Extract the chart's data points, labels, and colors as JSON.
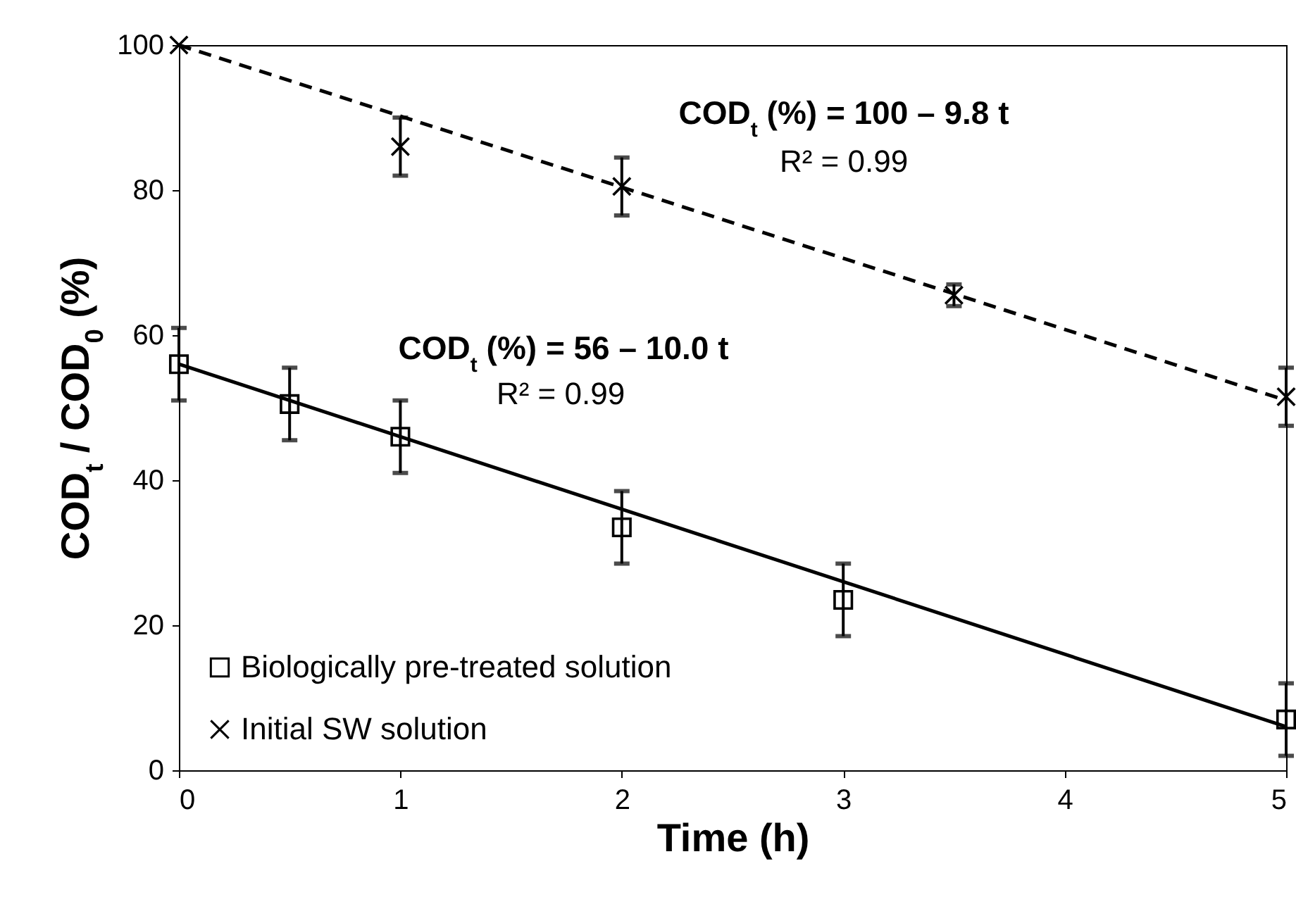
{
  "chart_data": {
    "type": "scatter",
    "xlabel": "Time (h)",
    "ylabel": "COD$_{t}$ / COD$_{0}$ (%)",
    "xlim": [
      0,
      5
    ],
    "xticks": [
      0,
      1,
      2,
      3,
      4,
      5
    ],
    "ylim": [
      0,
      100
    ],
    "yticks": [
      0,
      20,
      40,
      60,
      80,
      100
    ],
    "grid": false,
    "legend": "bottom left",
    "annotations": [
      "COD$_{t}$ (%)  = 100 – 9.8 t",
      "R² = 0.99",
      "COD$_{t}$ (%)  = 56 – 10.0 t",
      "R² = 0.99"
    ],
    "series": [
      {
        "name": "Biologically pre-treated solution",
        "type": "scatter",
        "marker": "square",
        "color": "#000000",
        "x": [
          0,
          0.5,
          1,
          2,
          3,
          5
        ],
        "values": [
          56,
          50.5,
          46,
          33.5,
          23.5,
          7
        ],
        "errors": [
          5,
          5,
          5,
          5,
          5,
          5
        ]
      },
      {
        "name": "Initial SW solution",
        "type": "scatter",
        "marker": "cross",
        "color": "#000000",
        "x": [
          0,
          1,
          2,
          3.5,
          5
        ],
        "values": [
          100,
          86,
          80.5,
          65.5,
          51.5
        ],
        "errors": [
          null,
          4,
          4,
          1.5,
          4
        ]
      },
      {
        "type": "line",
        "line_style": "solid",
        "color": "#000000",
        "x": [
          0,
          5
        ],
        "values": [
          56,
          6
        ]
      },
      {
        "type": "line",
        "line_style": "dashed",
        "color": "#000000",
        "x": [
          0,
          5
        ],
        "values": [
          100,
          51
        ]
      }
    ]
  }
}
